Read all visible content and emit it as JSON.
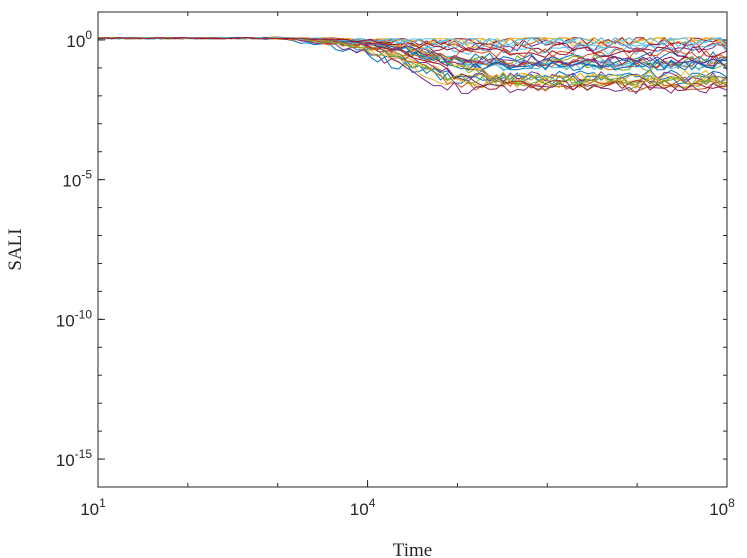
{
  "chart_data": {
    "type": "line",
    "title": "",
    "xlabel": "Time",
    "ylabel": "SALI",
    "x_scale": "log",
    "y_scale": "log",
    "xlim": [
      10,
      100000000
    ],
    "ylim": [
      1e-16,
      10
    ],
    "x_ticks": [
      {
        "value": 10,
        "base": "10",
        "exp": "1"
      },
      {
        "value": 10000,
        "base": "10",
        "exp": "4"
      },
      {
        "value": 100000000,
        "base": "10",
        "exp": "8"
      }
    ],
    "y_ticks": [
      {
        "value": 1,
        "base": "10",
        "exp": "0"
      },
      {
        "value": 1e-05,
        "base": "10",
        "exp": "-5"
      },
      {
        "value": 1e-10,
        "base": "10",
        "exp": "-10"
      },
      {
        "value": 1e-15,
        "base": "10",
        "exp": "-15"
      }
    ],
    "grid": false,
    "legend": "none",
    "series_count": 35,
    "colors": [
      "#0072BD",
      "#D95319",
      "#EDB120",
      "#7E2F8E",
      "#77AC30",
      "#4DBEEE",
      "#A2142F"
    ],
    "envelope": {
      "x": [
        10,
        1000,
        10000,
        100000,
        1000000,
        100000000
      ],
      "y_max": [
        1.3,
        1.3,
        1.1,
        1.1,
        1.2,
        1.2
      ],
      "y_min": [
        0.8,
        0.7,
        0.12,
        0.012,
        0.012,
        0.012
      ]
    }
  }
}
